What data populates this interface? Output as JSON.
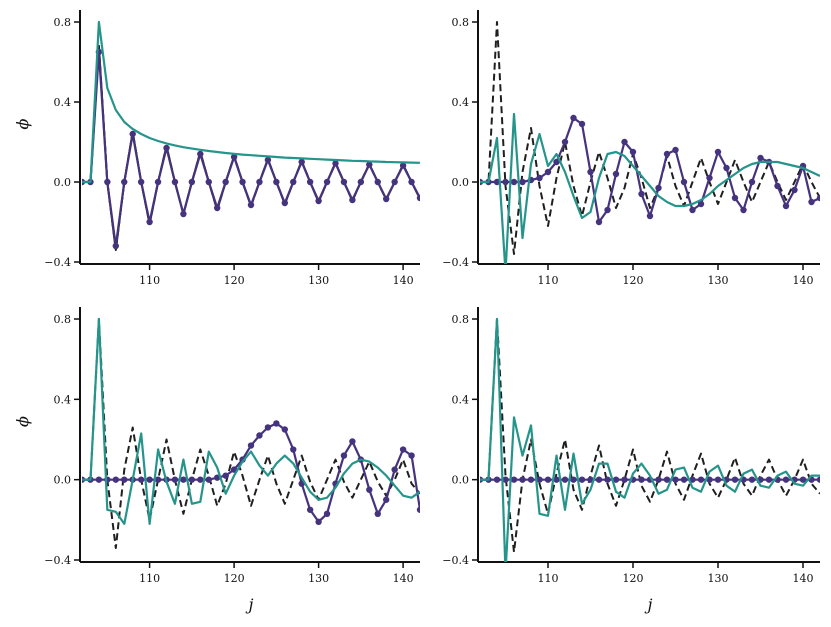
{
  "colors": {
    "black": "#1f1f1f",
    "purple": "#46337e",
    "teal": "#25958b"
  },
  "chart_data": [
    {
      "type": "line",
      "position": "top-left",
      "xlabel": "",
      "ylabel": "ϕ",
      "xlim": [
        102,
        142
      ],
      "ylim": [
        -0.4,
        0.8
      ],
      "xticks": [
        "110",
        "120",
        "130",
        "140"
      ],
      "yticks": [
        "−0.4",
        "0.0",
        "0.4",
        "0.8"
      ],
      "x": [
        102,
        103,
        104,
        105,
        106,
        107,
        108,
        109,
        110,
        111,
        112,
        113,
        114,
        115,
        116,
        117,
        118,
        119,
        120,
        121,
        122,
        123,
        124,
        125,
        126,
        127,
        128,
        129,
        130,
        131,
        132,
        133,
        134,
        135,
        136,
        137,
        138,
        139,
        140,
        141,
        142
      ],
      "series": [
        {
          "style": "solid",
          "color": "black",
          "markers": false,
          "values": [
            0.0,
            0.0,
            0.68,
            0.0,
            -0.34,
            0.0,
            0.25,
            0.0,
            -0.21,
            0.0,
            0.18,
            0.0,
            -0.16,
            0.0,
            0.15,
            0.0,
            -0.14,
            0.0,
            0.13,
            0.0,
            -0.12,
            0.0,
            0.115,
            0.0,
            -0.11,
            0.0,
            0.105,
            0.0,
            -0.1,
            0.0,
            0.097,
            0.0,
            -0.094,
            0.0,
            0.09,
            0.0,
            -0.088,
            0.0,
            0.086,
            0.0,
            -0.084
          ]
        },
        {
          "style": "dashed",
          "color": "black",
          "markers": false,
          "values": [
            0.0,
            0.0,
            0.68,
            0.0,
            -0.34,
            0.0,
            0.25,
            0.0,
            -0.21,
            0.0,
            0.18,
            0.0,
            -0.16,
            0.0,
            0.15,
            0.0,
            -0.14,
            0.0,
            0.13,
            0.0,
            -0.12,
            0.0,
            0.115,
            0.0,
            -0.11,
            0.0,
            0.105,
            0.0,
            -0.1,
            0.0,
            0.097,
            0.0,
            -0.094,
            0.0,
            0.09,
            0.0,
            -0.088,
            0.0,
            0.086,
            0.0,
            -0.084
          ]
        },
        {
          "style": "solid",
          "color": "purple",
          "markers": true,
          "values": [
            0.0,
            0.0,
            0.65,
            0.0,
            -0.32,
            0.0,
            0.24,
            0.0,
            -0.2,
            0.0,
            0.17,
            0.0,
            -0.16,
            0.0,
            0.14,
            0.0,
            -0.13,
            0.0,
            0.125,
            0.0,
            -0.115,
            0.0,
            0.11,
            0.0,
            -0.105,
            0.0,
            0.1,
            0.0,
            -0.095,
            0.0,
            0.093,
            0.0,
            -0.09,
            0.0,
            0.087,
            0.0,
            -0.085,
            0.0,
            0.082,
            0.0,
            -0.08
          ]
        },
        {
          "style": "solid",
          "color": "teal",
          "markers": false,
          "values": [
            0.0,
            0.0,
            0.8,
            0.47,
            0.36,
            0.3,
            0.265,
            0.24,
            0.22,
            0.205,
            0.193,
            0.183,
            0.174,
            0.167,
            0.161,
            0.155,
            0.15,
            0.145,
            0.141,
            0.137,
            0.134,
            0.131,
            0.128,
            0.125,
            0.122,
            0.12,
            0.118,
            0.116,
            0.114,
            0.112,
            0.11,
            0.108,
            0.106,
            0.105,
            0.103,
            0.102,
            0.1,
            0.099,
            0.098,
            0.097,
            0.096
          ]
        }
      ]
    },
    {
      "type": "line",
      "position": "top-right",
      "xlabel": "",
      "ylabel": "",
      "xlim": [
        102,
        142
      ],
      "ylim": [
        -0.4,
        0.8
      ],
      "xticks": [
        "110",
        "120",
        "130",
        "140"
      ],
      "yticks": [
        "−0.4",
        "0.0",
        "0.4",
        "0.8"
      ],
      "x": [
        102,
        103,
        104,
        105,
        106,
        107,
        108,
        109,
        110,
        111,
        112,
        113,
        114,
        115,
        116,
        117,
        118,
        119,
        120,
        121,
        122,
        123,
        124,
        125,
        126,
        127,
        128,
        129,
        130,
        131,
        132,
        133,
        134,
        135,
        136,
        137,
        138,
        139,
        140,
        141,
        142
      ],
      "series": [
        {
          "style": "dashed",
          "color": "black",
          "markers": false,
          "values": [
            0.0,
            0.0,
            0.8,
            -0.02,
            -0.36,
            0.05,
            0.27,
            -0.02,
            -0.22,
            0.02,
            0.2,
            -0.02,
            -0.17,
            0.0,
            0.15,
            0.02,
            -0.13,
            -0.03,
            0.14,
            0.02,
            -0.13,
            -0.03,
            0.13,
            -0.02,
            -0.12,
            0.0,
            0.12,
            0.0,
            -0.11,
            0.0,
            0.11,
            0.0,
            -0.1,
            0.0,
            0.1,
            0.0,
            -0.09,
            0.0,
            0.09,
            0.0,
            -0.08
          ]
        },
        {
          "style": "solid",
          "color": "purple",
          "markers": true,
          "values": [
            0.0,
            0.0,
            0.0,
            0.0,
            0.0,
            0.0,
            0.01,
            0.02,
            0.05,
            0.1,
            0.2,
            0.32,
            0.29,
            0.05,
            -0.2,
            -0.14,
            0.04,
            0.2,
            0.15,
            -0.06,
            -0.17,
            -0.03,
            0.14,
            0.16,
            0.0,
            -0.14,
            -0.11,
            0.02,
            0.15,
            0.07,
            -0.08,
            -0.14,
            0.0,
            0.12,
            0.1,
            -0.02,
            -0.12,
            -0.04,
            0.08,
            -0.1,
            -0.08
          ]
        },
        {
          "style": "solid",
          "color": "teal",
          "markers": false,
          "values": [
            0.0,
            0.0,
            0.22,
            -0.45,
            0.34,
            -0.28,
            0.09,
            0.24,
            0.08,
            0.14,
            0.05,
            -0.07,
            -0.18,
            -0.15,
            0.02,
            0.14,
            0.15,
            0.13,
            0.08,
            0.03,
            -0.02,
            -0.07,
            -0.1,
            -0.12,
            -0.12,
            -0.11,
            -0.09,
            -0.06,
            -0.02,
            0.01,
            0.04,
            0.07,
            0.09,
            0.1,
            0.1,
            0.1,
            0.09,
            0.08,
            0.07,
            0.05,
            0.03
          ]
        }
      ]
    },
    {
      "type": "line",
      "position": "bottom-left",
      "xlabel": "j",
      "ylabel": "ϕ",
      "xlim": [
        102,
        142
      ],
      "ylim": [
        -0.4,
        0.8
      ],
      "xticks": [
        "110",
        "120",
        "130",
        "140"
      ],
      "yticks": [
        "−0.4",
        "0.0",
        "0.4",
        "0.8"
      ],
      "x": [
        102,
        103,
        104,
        105,
        106,
        107,
        108,
        109,
        110,
        111,
        112,
        113,
        114,
        115,
        116,
        117,
        118,
        119,
        120,
        121,
        122,
        123,
        124,
        125,
        126,
        127,
        128,
        129,
        130,
        131,
        132,
        133,
        134,
        135,
        136,
        137,
        138,
        139,
        140,
        141,
        142
      ],
      "series": [
        {
          "style": "dashed",
          "color": "black",
          "markers": false,
          "values": [
            0.0,
            0.0,
            0.8,
            0.0,
            -0.34,
            0.05,
            0.26,
            0.0,
            -0.2,
            0.0,
            0.2,
            0.0,
            -0.17,
            0.0,
            0.15,
            0.02,
            -0.13,
            -0.02,
            0.14,
            0.02,
            -0.13,
            0.0,
            0.12,
            -0.02,
            -0.12,
            0.0,
            0.12,
            -0.01,
            -0.1,
            0.0,
            0.1,
            -0.01,
            -0.09,
            0.0,
            0.09,
            -0.01,
            -0.08,
            0.0,
            0.1,
            -0.02,
            -0.07
          ]
        },
        {
          "style": "solid",
          "color": "purple",
          "markers": true,
          "values": [
            0.0,
            0.0,
            0.0,
            0.0,
            0.0,
            0.0,
            0.0,
            0.0,
            0.0,
            0.0,
            0.0,
            0.0,
            0.0,
            0.0,
            0.0,
            0.0,
            0.01,
            0.02,
            0.05,
            0.1,
            0.17,
            0.22,
            0.26,
            0.28,
            0.25,
            0.15,
            -0.02,
            -0.15,
            -0.21,
            -0.17,
            -0.02,
            0.12,
            0.19,
            0.1,
            -0.05,
            -0.17,
            -0.1,
            0.05,
            0.15,
            0.12,
            -0.15
          ]
        },
        {
          "style": "solid",
          "color": "teal",
          "markers": false,
          "values": [
            0.0,
            0.0,
            0.8,
            -0.15,
            -0.16,
            -0.22,
            0.0,
            0.23,
            -0.22,
            0.15,
            -0.01,
            -0.12,
            0.1,
            -0.12,
            -0.11,
            0.14,
            0.06,
            -0.07,
            0.02,
            0.09,
            0.14,
            0.07,
            0.02,
            0.08,
            0.12,
            0.08,
            0.01,
            -0.06,
            -0.1,
            -0.09,
            -0.04,
            0.03,
            0.08,
            0.1,
            0.09,
            0.06,
            0.02,
            -0.03,
            -0.08,
            -0.09,
            -0.06
          ]
        }
      ]
    },
    {
      "type": "line",
      "position": "bottom-right",
      "xlabel": "j",
      "ylabel": "",
      "xlim": [
        102,
        142
      ],
      "ylim": [
        -0.4,
        0.8
      ],
      "xticks": [
        "110",
        "120",
        "130",
        "140"
      ],
      "yticks": [
        "−0.4",
        "0.0",
        "0.4",
        "0.8"
      ],
      "x": [
        102,
        103,
        104,
        105,
        106,
        107,
        108,
        109,
        110,
        111,
        112,
        113,
        114,
        115,
        116,
        117,
        118,
        119,
        120,
        121,
        122,
        123,
        124,
        125,
        126,
        127,
        128,
        129,
        130,
        131,
        132,
        133,
        134,
        135,
        136,
        137,
        138,
        139,
        140,
        141,
        142
      ],
      "series": [
        {
          "style": "dashed",
          "color": "black",
          "markers": false,
          "values": [
            0.0,
            0.0,
            0.8,
            0.02,
            -0.36,
            0.0,
            0.2,
            -0.02,
            -0.17,
            0.03,
            0.2,
            -0.05,
            -0.15,
            0.02,
            0.17,
            -0.02,
            -0.13,
            0.0,
            0.15,
            -0.03,
            -0.11,
            0.0,
            0.14,
            -0.02,
            -0.1,
            0.02,
            0.13,
            -0.02,
            -0.09,
            0.0,
            0.11,
            -0.02,
            -0.08,
            0.02,
            0.1,
            0.0,
            -0.08,
            0.0,
            0.1,
            -0.02,
            -0.07
          ]
        },
        {
          "style": "solid",
          "color": "purple",
          "markers": true,
          "values": [
            0.0,
            0.0,
            0.0,
            0.0,
            0.0,
            0.0,
            0.0,
            0.0,
            0.0,
            0.0,
            0.0,
            0.0,
            0.0,
            0.0,
            0.0,
            0.0,
            0.0,
            0.0,
            0.0,
            0.0,
            0.0,
            0.0,
            0.0,
            0.0,
            0.0,
            0.0,
            0.0,
            0.0,
            0.0,
            0.0,
            0.0,
            0.0,
            0.0,
            0.0,
            0.0,
            0.0,
            0.0,
            0.0,
            0.0,
            0.0,
            0.0
          ]
        },
        {
          "style": "solid",
          "color": "teal",
          "markers": false,
          "values": [
            0.0,
            0.0,
            0.8,
            -0.46,
            0.31,
            0.12,
            0.27,
            -0.17,
            -0.18,
            0.12,
            -0.15,
            0.13,
            -0.12,
            -0.05,
            0.08,
            0.08,
            -0.06,
            -0.09,
            0.03,
            0.08,
            0.02,
            -0.07,
            -0.05,
            0.05,
            0.06,
            -0.04,
            -0.06,
            0.04,
            0.07,
            -0.03,
            -0.06,
            0.03,
            0.05,
            -0.03,
            -0.04,
            0.02,
            0.04,
            -0.02,
            -0.03,
            0.02,
            0.02
          ]
        }
      ]
    }
  ]
}
